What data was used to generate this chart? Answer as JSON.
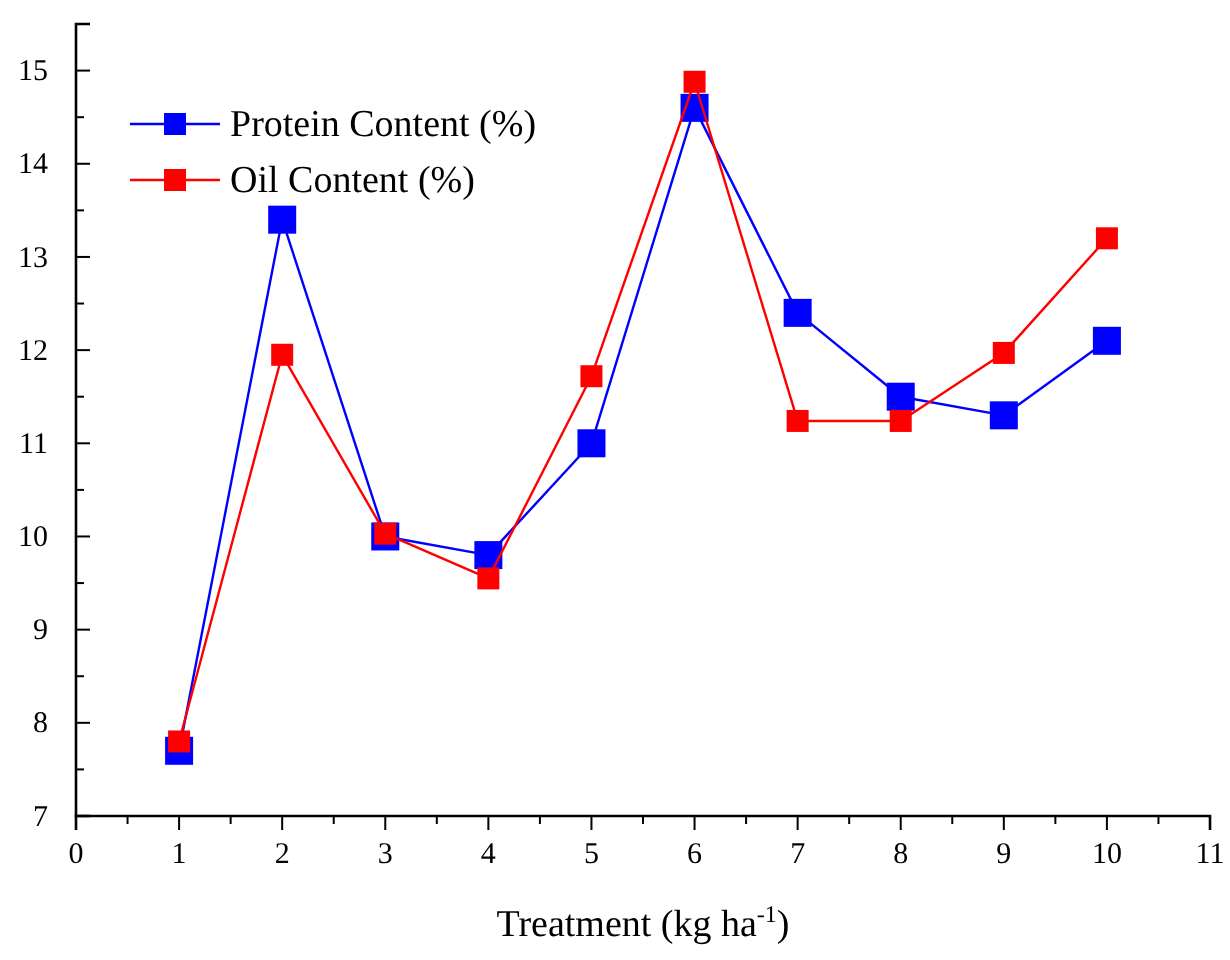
{
  "chart_data": {
    "type": "line",
    "xlabel": "Treatment (kg ha$^{-1}$)",
    "x": [
      1,
      2,
      3,
      4,
      5,
      6,
      7,
      8,
      9,
      10
    ],
    "series": [
      {
        "name": "Protein Content (%)",
        "color": "#0000ff",
        "values": [
          7.7,
          13.4,
          10.0,
          9.8,
          11.0,
          14.6,
          12.4,
          11.5,
          11.3,
          12.1
        ]
      },
      {
        "name": "Oil Content (%)",
        "color": "#ff0000",
        "values": [
          7.8,
          11.95,
          10.03,
          9.55,
          11.72,
          14.88,
          11.24,
          11.24,
          11.97,
          13.2
        ]
      }
    ],
    "xlim": [
      0,
      11
    ],
    "xticks": [
      0,
      1,
      2,
      3,
      4,
      5,
      6,
      7,
      8,
      9,
      10,
      11
    ],
    "ylim": [
      7,
      15.5
    ],
    "yticks": [
      7,
      8,
      9,
      10,
      11,
      12,
      13,
      14,
      15
    ],
    "marker": "square",
    "line_style": "solid",
    "legend": "top left",
    "grid": false
  }
}
